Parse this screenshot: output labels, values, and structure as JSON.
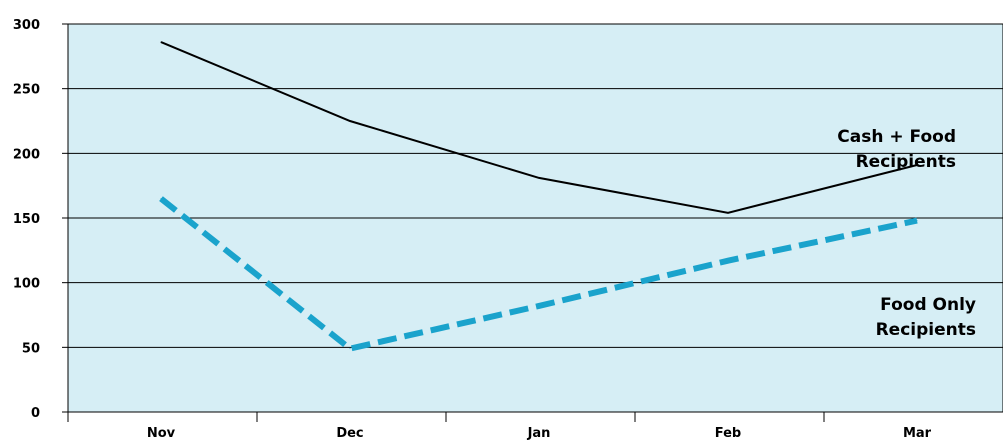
{
  "chart_data": {
    "type": "line",
    "title": "",
    "xlabel": "",
    "ylabel": "",
    "categories": [
      "Nov",
      "Dec",
      "Jan",
      "Feb",
      "Mar"
    ],
    "ylim": [
      0,
      300
    ],
    "yticks": [
      0,
      50,
      100,
      150,
      200,
      250,
      300
    ],
    "grid": true,
    "plot_background": "#d6eef5",
    "series": [
      {
        "label_lines": [
          "Cash + Food",
          "Recipients"
        ],
        "values": [
          286,
          225,
          181,
          154,
          191
        ],
        "color": "#000000",
        "style": "solid"
      },
      {
        "label_lines": [
          "Food Only",
          "Recipients"
        ],
        "values": [
          165,
          49,
          82,
          117,
          148
        ],
        "color": "#1aa3cc",
        "style": "dashed"
      }
    ]
  }
}
